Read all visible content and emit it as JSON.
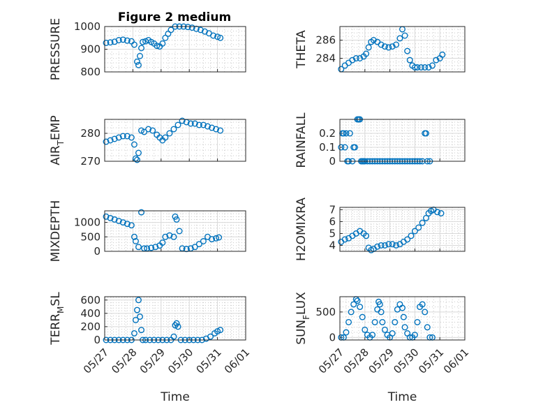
{
  "figure": {
    "title": "Figure 2 medium",
    "marker_color": "#0072BD"
  },
  "chart_data": [
    {
      "id": "pressure",
      "type": "scatter",
      "ylabel": "PRESSURE",
      "xlabel": "",
      "title": "Figure 2 medium",
      "xlim": [
        "05/27",
        "06/01"
      ],
      "ylim": [
        800,
        1000
      ],
      "yticks": [
        800,
        900,
        1000
      ],
      "xtick_labels": [],
      "x": [
        0.05,
        0.2,
        0.35,
        0.5,
        0.65,
        0.8,
        0.95,
        1.05,
        1.15,
        1.2,
        1.25,
        1.3,
        1.35,
        1.45,
        1.55,
        1.65,
        1.75,
        1.85,
        1.95,
        2.05,
        2.15,
        2.25,
        2.35,
        2.5,
        2.65,
        2.8,
        2.95,
        3.1,
        3.25,
        3.4,
        3.55,
        3.7,
        3.85,
        4.0,
        4.1
      ],
      "y": [
        928,
        930,
        933,
        940,
        942,
        938,
        935,
        920,
        845,
        830,
        870,
        905,
        932,
        935,
        940,
        932,
        925,
        915,
        912,
        925,
        950,
        968,
        985,
        1000,
        1000,
        1000,
        998,
        995,
        990,
        985,
        978,
        970,
        960,
        955,
        950
      ]
    },
    {
      "id": "theta",
      "type": "scatter",
      "ylabel": "THETA",
      "xlabel": "",
      "xlim": [
        "05/27",
        "06/01"
      ],
      "ylim": [
        282.5,
        287.5
      ],
      "yticks": [
        284,
        286
      ],
      "xtick_labels": [],
      "x": [
        0.05,
        0.2,
        0.35,
        0.5,
        0.65,
        0.8,
        0.95,
        1.05,
        1.15,
        1.25,
        1.35,
        1.5,
        1.65,
        1.8,
        1.95,
        2.1,
        2.25,
        2.4,
        2.5,
        2.6,
        2.7,
        2.8,
        2.9,
        3.0,
        3.1,
        3.25,
        3.4,
        3.55,
        3.7,
        3.85,
        4.0,
        4.1
      ],
      "y": [
        282.8,
        283.2,
        283.5,
        283.8,
        284.0,
        284.0,
        284.2,
        284.5,
        285.2,
        285.8,
        286.0,
        285.8,
        285.5,
        285.3,
        285.2,
        285.3,
        285.5,
        286.2,
        287.2,
        286.5,
        284.8,
        283.8,
        283.2,
        283.0,
        283.0,
        283.0,
        283.0,
        283.0,
        283.2,
        283.8,
        284.0,
        284.4
      ]
    },
    {
      "id": "air_temp",
      "type": "scatter",
      "ylabel": "AIR_TEMP",
      "xlabel": "",
      "xlim": [
        "05/27",
        "06/01"
      ],
      "ylim": [
        270,
        285
      ],
      "yticks": [
        270,
        280
      ],
      "xtick_labels": [],
      "x": [
        0.05,
        0.2,
        0.35,
        0.5,
        0.65,
        0.8,
        0.95,
        1.05,
        1.1,
        1.15,
        1.2,
        1.3,
        1.4,
        1.55,
        1.7,
        1.85,
        1.95,
        2.05,
        2.15,
        2.3,
        2.45,
        2.6,
        2.75,
        2.9,
        3.05,
        3.2,
        3.35,
        3.5,
        3.65,
        3.8,
        3.95,
        4.1
      ],
      "y": [
        277,
        277.5,
        278,
        278.5,
        279,
        279,
        278.5,
        276,
        271,
        270.5,
        273,
        281,
        280.5,
        281.5,
        281,
        279.5,
        278.5,
        277.5,
        278.5,
        280,
        281.5,
        283,
        284.5,
        284,
        283.5,
        283.5,
        283,
        283,
        282.5,
        282,
        281.5,
        281
      ]
    },
    {
      "id": "rainfall",
      "type": "scatter",
      "ylabel": "RAINFALL",
      "xlabel": "",
      "xlim": [
        "05/27",
        "06/01"
      ],
      "ylim": [
        0,
        0.3
      ],
      "yticks": [
        0,
        0.1,
        0.2
      ],
      "xtick_labels": [],
      "x": [
        0.05,
        0.1,
        0.15,
        0.2,
        0.25,
        0.3,
        0.35,
        0.4,
        0.5,
        0.55,
        0.6,
        0.7,
        0.75,
        0.8,
        0.85,
        0.9,
        0.95,
        1.0,
        1.1,
        1.2,
        1.3,
        1.4,
        1.5,
        1.6,
        1.7,
        1.8,
        1.9,
        2.0,
        2.1,
        2.2,
        2.3,
        2.4,
        2.5,
        2.6,
        2.7,
        2.8,
        2.9,
        3.0,
        3.1,
        3.2,
        3.3,
        3.4,
        3.45,
        3.5,
        3.6
      ],
      "y": [
        0.1,
        0.2,
        0.2,
        0.1,
        0.2,
        0,
        0,
        0.2,
        0,
        0.1,
        0.1,
        0.3,
        0.3,
        0.3,
        0,
        0,
        0,
        0,
        0,
        0,
        0,
        0,
        0,
        0,
        0,
        0,
        0,
        0,
        0,
        0,
        0,
        0,
        0,
        0,
        0,
        0,
        0,
        0,
        0,
        0,
        0,
        0.2,
        0.2,
        0,
        0
      ]
    },
    {
      "id": "mixdepth",
      "type": "scatter",
      "ylabel": "MIXDEPTH",
      "xlabel": "",
      "xlim": [
        "05/27",
        "06/01"
      ],
      "ylim": [
        0,
        1400
      ],
      "yticks": [
        0,
        500,
        1000
      ],
      "xtick_labels": [],
      "x": [
        0.05,
        0.2,
        0.35,
        0.5,
        0.65,
        0.8,
        0.95,
        1.05,
        1.1,
        1.2,
        1.3,
        1.4,
        1.5,
        1.65,
        1.8,
        1.95,
        2.05,
        2.15,
        2.3,
        2.45,
        2.5,
        2.55,
        2.65,
        2.75,
        2.9,
        3.05,
        3.2,
        3.35,
        3.5,
        3.65,
        3.8,
        3.95,
        4.05
      ],
      "y": [
        1200,
        1150,
        1100,
        1050,
        1000,
        950,
        900,
        500,
        350,
        150,
        1350,
        100,
        100,
        120,
        150,
        200,
        300,
        500,
        550,
        500,
        1200,
        1100,
        700,
        100,
        80,
        100,
        150,
        250,
        350,
        500,
        420,
        450,
        480
      ]
    },
    {
      "id": "h2omixra",
      "type": "scatter",
      "ylabel": "H2OMIXRA",
      "xlabel": "",
      "xlim": [
        "05/27",
        "06/01"
      ],
      "ylim": [
        3.5,
        7.2
      ],
      "yticks": [
        4,
        5,
        6,
        7
      ],
      "xtick_labels": [],
      "x": [
        0.05,
        0.2,
        0.35,
        0.5,
        0.65,
        0.8,
        0.95,
        1.05,
        1.15,
        1.25,
        1.35,
        1.5,
        1.65,
        1.8,
        1.95,
        2.1,
        2.25,
        2.4,
        2.55,
        2.7,
        2.85,
        3.0,
        3.15,
        3.3,
        3.45,
        3.55,
        3.65,
        3.75,
        3.9,
        4.05
      ],
      "y": [
        4.3,
        4.5,
        4.6,
        4.8,
        5.0,
        5.2,
        5.0,
        4.8,
        3.8,
        3.6,
        3.7,
        3.9,
        4.0,
        4.0,
        4.1,
        4.1,
        4.0,
        4.1,
        4.3,
        4.5,
        4.8,
        5.2,
        5.5,
        5.9,
        6.3,
        6.7,
        6.9,
        7.0,
        6.8,
        6.7
      ]
    },
    {
      "id": "terr_msl",
      "type": "scatter",
      "ylabel": "TERR_MSL",
      "xlabel": "Time",
      "xlim": [
        "05/27",
        "06/01"
      ],
      "ylim": [
        0,
        650
      ],
      "yticks": [
        0,
        200,
        400,
        600
      ],
      "xtick_labels": [
        "05/27",
        "05/28",
        "05/29",
        "05/30",
        "05/31",
        "06/01"
      ],
      "x": [
        0.05,
        0.2,
        0.35,
        0.5,
        0.65,
        0.8,
        0.95,
        1.05,
        1.1,
        1.15,
        1.2,
        1.25,
        1.3,
        1.35,
        1.45,
        1.6,
        1.75,
        1.9,
        2.05,
        2.2,
        2.35,
        2.45,
        2.5,
        2.55,
        2.6,
        2.7,
        2.85,
        3.0,
        3.15,
        3.3,
        3.45,
        3.6,
        3.75,
        3.9,
        4.0,
        4.1
      ],
      "y": [
        0,
        0,
        0,
        0,
        0,
        0,
        0,
        100,
        300,
        450,
        600,
        350,
        150,
        0,
        0,
        0,
        0,
        0,
        0,
        0,
        0,
        50,
        220,
        250,
        200,
        0,
        0,
        0,
        0,
        0,
        0,
        20,
        50,
        100,
        130,
        150
      ]
    },
    {
      "id": "sun_flux",
      "type": "scatter",
      "ylabel": "SUN_FLUX",
      "xlabel": "Time",
      "xlim": [
        "05/27",
        "06/01"
      ],
      "ylim": [
        -50,
        800
      ],
      "yticks": [
        0,
        500
      ],
      "xtick_labels": [
        "05/27",
        "05/28",
        "05/29",
        "05/30",
        "05/31",
        "06/01"
      ],
      "x": [
        0.05,
        0.15,
        0.25,
        0.35,
        0.45,
        0.55,
        0.65,
        0.7,
        0.8,
        0.9,
        1.0,
        1.1,
        1.2,
        1.3,
        1.4,
        1.5,
        1.55,
        1.6,
        1.65,
        1.7,
        1.8,
        1.9,
        2.0,
        2.1,
        2.2,
        2.3,
        2.4,
        2.5,
        2.55,
        2.6,
        2.7,
        2.8,
        2.9,
        3.0,
        3.1,
        3.2,
        3.3,
        3.4,
        3.5,
        3.6,
        3.7
      ],
      "y": [
        0,
        0,
        100,
        300,
        500,
        650,
        750,
        720,
        600,
        400,
        150,
        50,
        0,
        50,
        300,
        550,
        700,
        650,
        500,
        300,
        150,
        50,
        0,
        80,
        300,
        550,
        650,
        580,
        400,
        200,
        80,
        0,
        0,
        50,
        300,
        600,
        650,
        500,
        200,
        0,
        0
      ]
    }
  ]
}
